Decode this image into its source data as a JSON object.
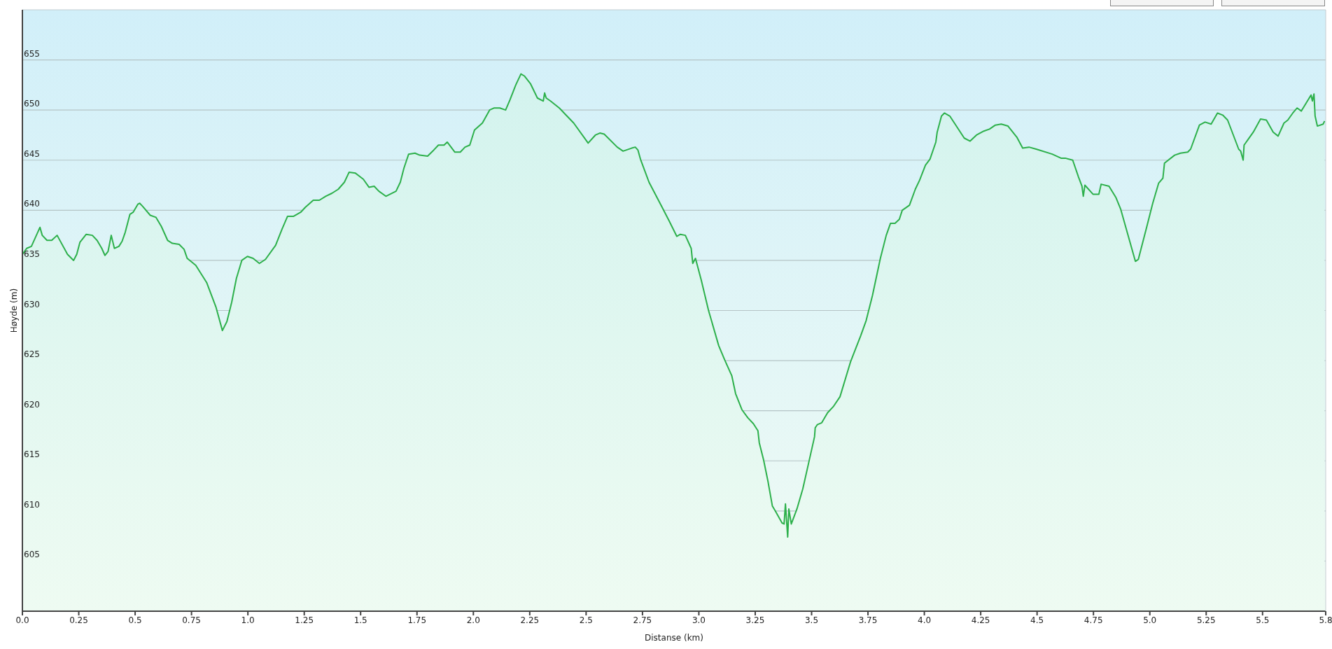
{
  "chart_data": {
    "type": "area",
    "xlabel": "Distanse  (km)",
    "ylabel": "Høyde (m)",
    "xlim": [
      0,
      5.78
    ],
    "xticks": [
      {
        "value": 0,
        "label": "0.0"
      },
      {
        "value": 0.25,
        "label": "0.25"
      },
      {
        "value": 0.5,
        "label": "0.5"
      },
      {
        "value": 0.75,
        "label": "0.75"
      },
      {
        "value": 1,
        "label": "1.0"
      },
      {
        "value": 1.25,
        "label": "1.25"
      },
      {
        "value": 1.5,
        "label": "1.5"
      },
      {
        "value": 1.75,
        "label": "1.75"
      },
      {
        "value": 2,
        "label": "2.0"
      },
      {
        "value": 2.25,
        "label": "2.25"
      },
      {
        "value": 2.5,
        "label": "2.5"
      },
      {
        "value": 2.75,
        "label": "2.75"
      },
      {
        "value": 3,
        "label": "3.0"
      },
      {
        "value": 3.25,
        "label": "3.25"
      },
      {
        "value": 3.5,
        "label": "3.5"
      },
      {
        "value": 3.75,
        "label": "3.75"
      },
      {
        "value": 4,
        "label": "4.0"
      },
      {
        "value": 4.25,
        "label": "4.25"
      },
      {
        "value": 4.5,
        "label": "4.5"
      },
      {
        "value": 4.75,
        "label": "4.75"
      },
      {
        "value": 5,
        "label": "5.0"
      },
      {
        "value": 5.25,
        "label": "5.25"
      },
      {
        "value": 5.5,
        "label": "5.5"
      },
      {
        "value": 5.78,
        "label": "5.8"
      }
    ],
    "ylim": [
      600,
      660
    ],
    "yticks": [
      605,
      610,
      615,
      620,
      625,
      630,
      635,
      640,
      645,
      650,
      655
    ],
    "grid": "y",
    "legend": false,
    "marker": "none",
    "line_style": "solid",
    "series": [
      {
        "color": "#2db04b",
        "x": [
          0,
          0.019,
          0.04,
          0.078,
          0.088,
          0.109,
          0.13,
          0.154,
          0.2,
          0.227,
          0.241,
          0.255,
          0.283,
          0.31,
          0.331,
          0.352,
          0.366,
          0.38,
          0.394,
          0.408,
          0.428,
          0.442,
          0.456,
          0.477,
          0.491,
          0.512,
          0.52,
          0.533,
          0.567,
          0.592,
          0.616,
          0.644,
          0.665,
          0.695,
          0.717,
          0.731,
          0.769,
          0.817,
          0.859,
          0.887,
          0.907,
          0.928,
          0.949,
          0.973,
          0.998,
          1.023,
          1.051,
          1.078,
          1.123,
          1.151,
          1.176,
          1.203,
          1.234,
          1.255,
          1.29,
          1.317,
          1.345,
          1.373,
          1.401,
          1.428,
          1.449,
          1.477,
          1.512,
          1.537,
          1.56,
          1.581,
          1.612,
          1.657,
          1.676,
          1.692,
          1.713,
          1.741,
          1.762,
          1.797,
          1.824,
          1.845,
          1.87,
          1.884,
          1.918,
          1.942,
          1.963,
          1.984,
          2.005,
          2.04,
          2.072,
          2.091,
          2.117,
          2.143,
          2.162,
          2.188,
          2.211,
          2.226,
          2.254,
          2.284,
          2.31,
          2.316,
          2.323,
          2.342,
          2.381,
          2.445,
          2.509,
          2.541,
          2.561,
          2.58,
          2.638,
          2.664,
          2.702,
          2.718,
          2.73,
          2.741,
          2.779,
          2.837,
          2.869,
          2.902,
          2.918,
          2.94,
          2.966,
          2.973,
          2.985,
          3.011,
          3.043,
          3.088,
          3.114,
          3.146,
          3.163,
          3.191,
          3.217,
          3.242,
          3.262,
          3.268,
          3.287,
          3.307,
          3.326,
          3.339,
          3.369,
          3.378,
          3.384,
          3.394,
          3.399,
          3.41,
          3.435,
          3.461,
          3.487,
          3.513,
          3.516,
          3.525,
          3.545,
          3.571,
          3.596,
          3.626,
          3.673,
          3.718,
          3.742,
          3.77,
          3.805,
          3.831,
          3.85,
          3.87,
          3.889,
          3.902,
          3.934,
          3.96,
          3.979,
          4.005,
          4.025,
          4.051,
          4.057,
          4.076,
          4.089,
          4.113,
          4.177,
          4.203,
          4.231,
          4.264,
          4.289,
          4.315,
          4.341,
          4.371,
          4.41,
          4.436,
          4.464,
          4.496,
          4.567,
          4.606,
          4.625,
          4.658,
          4.684,
          4.699,
          4.705,
          4.712,
          4.748,
          4.774,
          4.784,
          4.819,
          4.849,
          4.871,
          4.936,
          4.949,
          4.987,
          5.013,
          5.039,
          5.058,
          5.065,
          5.11,
          5.136,
          5.168,
          5.181,
          5.22,
          5.245,
          5.272,
          5.3,
          5.323,
          5.345,
          5.394,
          5.403,
          5.414,
          5.418,
          5.437,
          5.459,
          5.491,
          5.517,
          5.547,
          5.569,
          5.595,
          5.612,
          5.634,
          5.653,
          5.672,
          5.715,
          5.721,
          5.728,
          5.733,
          5.743,
          5.769,
          5.775
        ],
        "values": [
          635.6,
          636.2,
          636.4,
          638.3,
          637.5,
          637.0,
          637.0,
          637.5,
          635.6,
          635.0,
          635.6,
          636.8,
          637.6,
          637.5,
          637.0,
          636.2,
          635.5,
          635.9,
          637.5,
          636.2,
          636.4,
          636.9,
          637.8,
          639.6,
          639.8,
          640.6,
          640.7,
          640.4,
          639.5,
          639.3,
          638.4,
          637.0,
          636.7,
          636.6,
          636.1,
          635.2,
          634.5,
          632.8,
          630.3,
          628.0,
          628.9,
          630.8,
          633.2,
          635.0,
          635.4,
          635.2,
          634.7,
          635.1,
          636.5,
          638.1,
          639.4,
          639.4,
          639.8,
          640.3,
          641.0,
          641.0,
          641.4,
          641.7,
          642.1,
          642.8,
          643.8,
          643.7,
          643.1,
          642.3,
          642.4,
          641.9,
          641.4,
          641.9,
          642.8,
          644.2,
          645.6,
          645.7,
          645.5,
          645.4,
          646.0,
          646.5,
          646.5,
          646.8,
          645.8,
          645.8,
          646.3,
          646.5,
          648.0,
          648.7,
          650.0,
          650.2,
          650.2,
          650.0,
          651.0,
          652.5,
          653.6,
          653.4,
          652.6,
          651.2,
          650.9,
          651.7,
          651.2,
          650.9,
          650.2,
          648.7,
          646.7,
          647.5,
          647.7,
          647.6,
          646.3,
          645.9,
          646.2,
          646.3,
          646.0,
          645.1,
          642.8,
          640.3,
          638.9,
          637.4,
          637.6,
          637.5,
          636.2,
          634.7,
          635.2,
          633.0,
          630.0,
          626.5,
          625.1,
          623.5,
          621.7,
          620.1,
          619.3,
          618.7,
          618.0,
          616.8,
          615.1,
          612.9,
          610.5,
          610.0,
          608.8,
          608.7,
          610.7,
          607.4,
          610.2,
          608.7,
          610.2,
          612.2,
          614.8,
          617.4,
          618.3,
          618.6,
          618.8,
          619.8,
          620.4,
          621.4,
          624.9,
          627.5,
          629.0,
          631.5,
          635.2,
          637.5,
          638.7,
          638.7,
          639.1,
          640.0,
          640.5,
          642.1,
          643.0,
          644.5,
          645.1,
          646.8,
          647.8,
          649.4,
          649.7,
          649.4,
          647.2,
          646.9,
          647.5,
          647.9,
          648.1,
          648.5,
          648.6,
          648.4,
          647.3,
          646.2,
          646.3,
          646.1,
          645.6,
          645.2,
          645.2,
          645.0,
          643.3,
          642.4,
          641.4,
          642.5,
          641.6,
          641.6,
          642.6,
          642.4,
          641.3,
          640.1,
          634.9,
          635.1,
          638.4,
          640.7,
          642.7,
          643.2,
          644.7,
          645.5,
          645.7,
          645.8,
          646.1,
          648.5,
          648.8,
          648.6,
          649.7,
          649.5,
          649.0,
          646.1,
          645.9,
          645.0,
          646.5,
          647.1,
          647.8,
          649.1,
          649.0,
          647.8,
          647.4,
          648.7,
          649.0,
          649.7,
          650.2,
          649.9,
          651.5,
          650.9,
          651.6,
          649.4,
          648.4,
          648.6,
          648.9
        ]
      }
    ]
  }
}
